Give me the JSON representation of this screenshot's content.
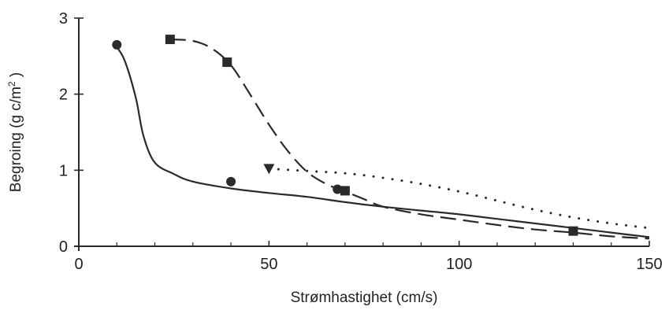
{
  "chart_data": {
    "type": "line",
    "title": "",
    "xlabel": "Strømhastighet (cm/s)",
    "ylabel_main": "Begroing (g c/m",
    "ylabel_sup": "2",
    "ylabel_end": " )",
    "xlim": [
      0,
      150
    ],
    "ylim": [
      0,
      3
    ],
    "x_ticks": [
      0,
      50,
      100,
      150
    ],
    "x_tick_labels": [
      "0",
      "50",
      "100",
      "150"
    ],
    "x_minor_ticks": [
      10,
      20,
      30,
      40,
      60,
      70,
      80,
      90,
      110,
      120,
      130,
      140
    ],
    "y_ticks": [
      0,
      1,
      2,
      3
    ],
    "y_tick_labels": [
      "0",
      "1",
      "2",
      "3"
    ],
    "grid": false,
    "series": [
      {
        "marker": "circle",
        "line_style": "solid",
        "points": [
          [
            10,
            2.65
          ],
          [
            40,
            0.85
          ],
          [
            68,
            0.75
          ]
        ],
        "curve": [
          [
            9.5,
            2.65
          ],
          [
            12,
            2.45
          ],
          [
            15,
            1.95
          ],
          [
            17,
            1.45
          ],
          [
            20,
            1.1
          ],
          [
            25,
            0.95
          ],
          [
            30,
            0.85
          ],
          [
            40,
            0.76
          ],
          [
            50,
            0.7
          ],
          [
            60,
            0.65
          ],
          [
            70,
            0.58
          ],
          [
            80,
            0.52
          ],
          [
            90,
            0.47
          ],
          [
            100,
            0.42
          ],
          [
            110,
            0.36
          ],
          [
            120,
            0.3
          ],
          [
            130,
            0.24
          ],
          [
            140,
            0.18
          ],
          [
            150,
            0.12
          ]
        ]
      },
      {
        "marker": "square",
        "line_style": "dashed",
        "points": [
          [
            24,
            2.72
          ],
          [
            39,
            2.42
          ],
          [
            70,
            0.73
          ],
          [
            130,
            0.2
          ]
        ],
        "curve": [
          [
            24,
            2.72
          ],
          [
            30,
            2.7
          ],
          [
            35,
            2.6
          ],
          [
            40,
            2.38
          ],
          [
            45,
            2.0
          ],
          [
            50,
            1.6
          ],
          [
            55,
            1.25
          ],
          [
            60,
            0.98
          ],
          [
            65,
            0.82
          ],
          [
            70,
            0.72
          ],
          [
            75,
            0.62
          ],
          [
            80,
            0.52
          ],
          [
            90,
            0.42
          ],
          [
            100,
            0.35
          ],
          [
            110,
            0.28
          ],
          [
            120,
            0.22
          ],
          [
            130,
            0.18
          ],
          [
            140,
            0.13
          ],
          [
            150,
            0.1
          ]
        ]
      },
      {
        "marker": "triangle-down",
        "line_style": "dotted",
        "points": [
          [
            50,
            1.02
          ]
        ],
        "curve": [
          [
            50,
            1.02
          ],
          [
            60,
            0.99
          ],
          [
            70,
            0.96
          ],
          [
            80,
            0.9
          ],
          [
            90,
            0.82
          ],
          [
            100,
            0.72
          ],
          [
            110,
            0.6
          ],
          [
            120,
            0.48
          ],
          [
            130,
            0.38
          ],
          [
            140,
            0.3
          ],
          [
            150,
            0.24
          ]
        ]
      }
    ]
  }
}
